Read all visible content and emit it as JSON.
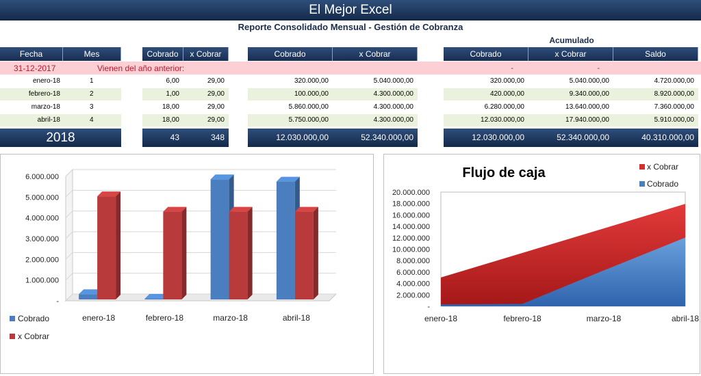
{
  "app": {
    "title": "El Mejor Excel"
  },
  "report": {
    "subtitle": "Reporte Consolidado Mensual - Gestión de Cobranza",
    "acumulado_label": "Acumulado"
  },
  "headers": {
    "fecha": "Fecha",
    "mes": "Mes",
    "cobrado": "Cobrado",
    "x_cobrar": "x Cobrar",
    "cobrado2": "Cobrado",
    "x_cobrar2": "x Cobrar",
    "cobrado3": "Cobrado",
    "x_cobrar3": "x Cobrar",
    "saldo": "Saldo"
  },
  "opening": {
    "date": "31-12-2017",
    "label": "Vienen del año anterior:",
    "acum_cobrado": "-",
    "acum_x_cobrar": "-",
    "acum_saldo": "-"
  },
  "rows": [
    {
      "fecha": "enero-18",
      "mes": "1",
      "cobrado": "6,00",
      "x_cobrar": "29,00",
      "monto_cobrado": "320.000,00",
      "monto_x_cobrar": "5.040.000,00",
      "acum_cobrado": "320.000,00",
      "acum_x_cobrar": "5.040.000,00",
      "saldo": "4.720.000,00"
    },
    {
      "fecha": "febrero-18",
      "mes": "2",
      "cobrado": "1,00",
      "x_cobrar": "29,00",
      "monto_cobrado": "100.000,00",
      "monto_x_cobrar": "4.300.000,00",
      "acum_cobrado": "420.000,00",
      "acum_x_cobrar": "9.340.000,00",
      "saldo": "8.920.000,00"
    },
    {
      "fecha": "marzo-18",
      "mes": "3",
      "cobrado": "18,00",
      "x_cobrar": "29,00",
      "monto_cobrado": "5.860.000,00",
      "monto_x_cobrar": "4.300.000,00",
      "acum_cobrado": "6.280.000,00",
      "acum_x_cobrar": "13.640.000,00",
      "saldo": "7.360.000,00"
    },
    {
      "fecha": "abril-18",
      "mes": "4",
      "cobrado": "18,00",
      "x_cobrar": "29,00",
      "monto_cobrado": "5.750.000,00",
      "monto_x_cobrar": "4.300.000,00",
      "acum_cobrado": "12.030.000,00",
      "acum_x_cobrar": "17.940.000,00",
      "saldo": "5.910.000,00"
    }
  ],
  "totals": {
    "year": "2018",
    "cobrado": "43",
    "x_cobrar": "348",
    "monto_cobrado": "12.030.000,00",
    "monto_x_cobrar": "52.340.000,00",
    "acum_cobrado": "12.030.000,00",
    "acum_x_cobrar": "52.340.000,00",
    "saldo": "40.310.000,00"
  },
  "colors": {
    "header": "#1f3864",
    "band": "#eaf1dd",
    "pink": "#fbcfd3",
    "blue_series": "#4a7ebf",
    "red_series": "#b83a3a"
  },
  "chart_data": [
    {
      "type": "bar",
      "title": "",
      "categories": [
        "enero-18",
        "febrero-18",
        "marzo-18",
        "abril-18"
      ],
      "series": [
        {
          "name": "Cobrado",
          "values": [
            320000,
            100000,
            5860000,
            5750000
          ],
          "color": "#4a7ebf"
        },
        {
          "name": "x Cobrar",
          "values": [
            5040000,
            4300000,
            4300000,
            4300000
          ],
          "color": "#b83a3a"
        }
      ],
      "yticks": [
        "-",
        "1.000.000",
        "2.000.000",
        "3.000.000",
        "4.000.000",
        "5.000.000",
        "6.000.000"
      ],
      "ylim": [
        0,
        6000000
      ],
      "grid": true,
      "legend": "bottom-left"
    },
    {
      "type": "area",
      "title": "Flujo de caja",
      "categories": [
        "enero-18",
        "febrero-18",
        "marzo-18",
        "abril-18"
      ],
      "series": [
        {
          "name": "Cobrado",
          "values": [
            320000,
            420000,
            6280000,
            12030000
          ],
          "color": "#4a7ebf"
        },
        {
          "name": "x Cobrar",
          "values": [
            5040000,
            9340000,
            13640000,
            17940000
          ],
          "color": "#d03030"
        }
      ],
      "yticks": [
        "-",
        "2.000.000",
        "4.000.000",
        "6.000.000",
        "8.000.000",
        "10.000.000",
        "12.000.000",
        "14.000.000",
        "16.000.000",
        "18.000.000",
        "20.000.000"
      ],
      "ylim": [
        0,
        20000000
      ],
      "grid": false,
      "legend": "top-right"
    }
  ]
}
